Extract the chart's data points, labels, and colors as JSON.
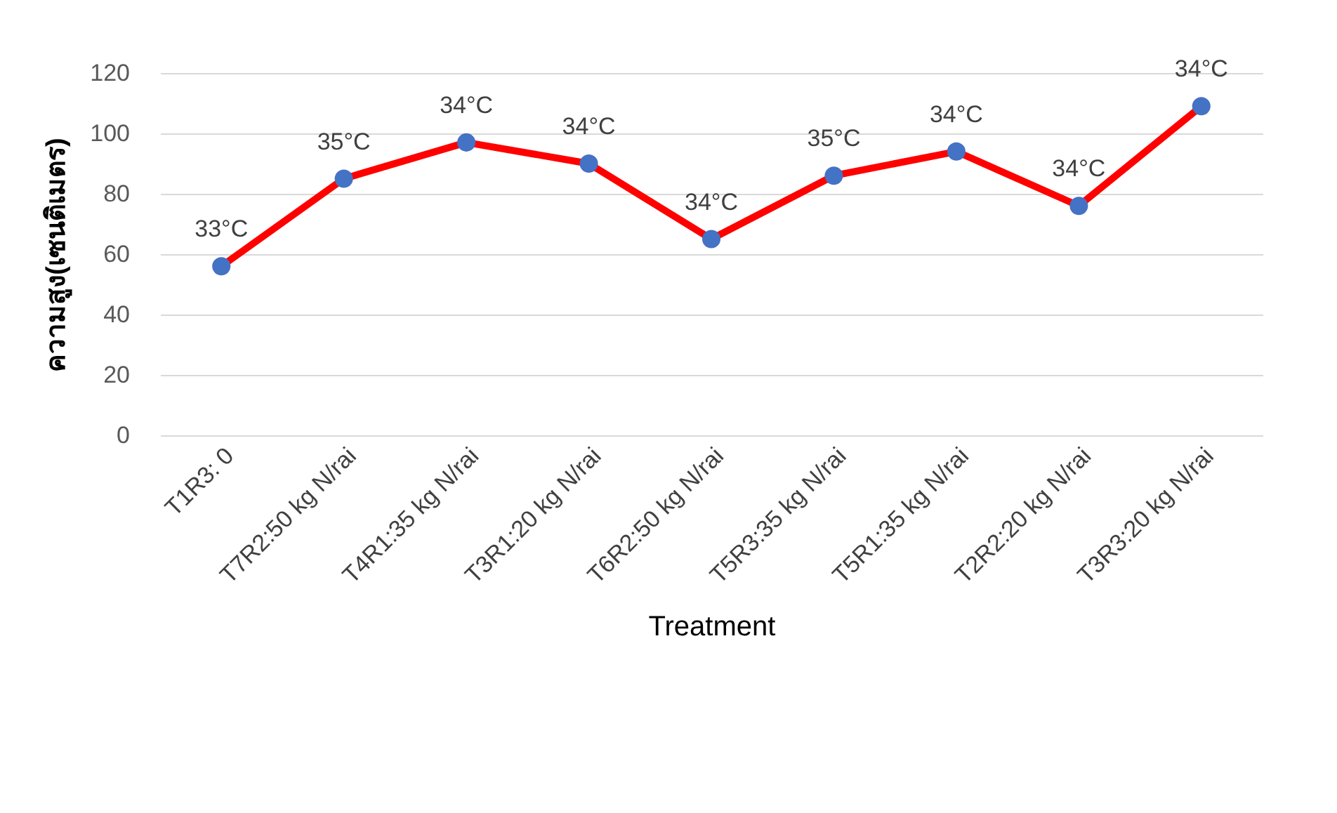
{
  "chart_data": {
    "type": "line",
    "xlabel": "Treatment",
    "ylabel": "ความสูง(เซนติเมตร)",
    "categories": [
      "T1R3: 0",
      "T7R2:50 kg N/rai",
      "T4R1:35 kg N/rai",
      "T3R1:20 kg N/rai",
      "T6R2:50 kg N/rai",
      "T5R3:35 kg N/rai",
      "T5R1:35 kg N/rai",
      "T2R2:20 kg N/rai",
      "T3R3:20 kg N/rai"
    ],
    "series": [
      {
        "color": "#ff0000",
        "values": [
          56,
          85,
          97,
          90,
          65,
          86,
          94,
          76,
          109
        ]
      }
    ],
    "marker": "circle",
    "line_style": "solid",
    "ylim": [
      0,
      120
    ],
    "yticks": [
      0,
      20,
      40,
      60,
      80,
      100,
      120
    ],
    "grid": "y",
    "annotations": [
      {
        "text": "33°C",
        "x": "T1R3: 0",
        "y": 56
      },
      {
        "text": "35°C",
        "x": "T7R2:50 kg N/rai",
        "y": 85
      },
      {
        "text": "34°C",
        "x": "T4R1:35 kg N/rai",
        "y": 97
      },
      {
        "text": "34°C",
        "x": "T3R1:20 kg N/rai",
        "y": 90
      },
      {
        "text": "34°C",
        "x": "T6R2:50 kg N/rai",
        "y": 65
      },
      {
        "text": "35°C",
        "x": "T5R3:35 kg N/rai",
        "y": 86
      },
      {
        "text": "34°C",
        "x": "T5R1:35 kg N/rai",
        "y": 94
      },
      {
        "text": "34°C",
        "x": "T2R2:20 kg N/rai",
        "y": 76
      },
      {
        "text": "34°C",
        "x": "T3R3:20 kg N/rai",
        "y": 109
      }
    ]
  }
}
